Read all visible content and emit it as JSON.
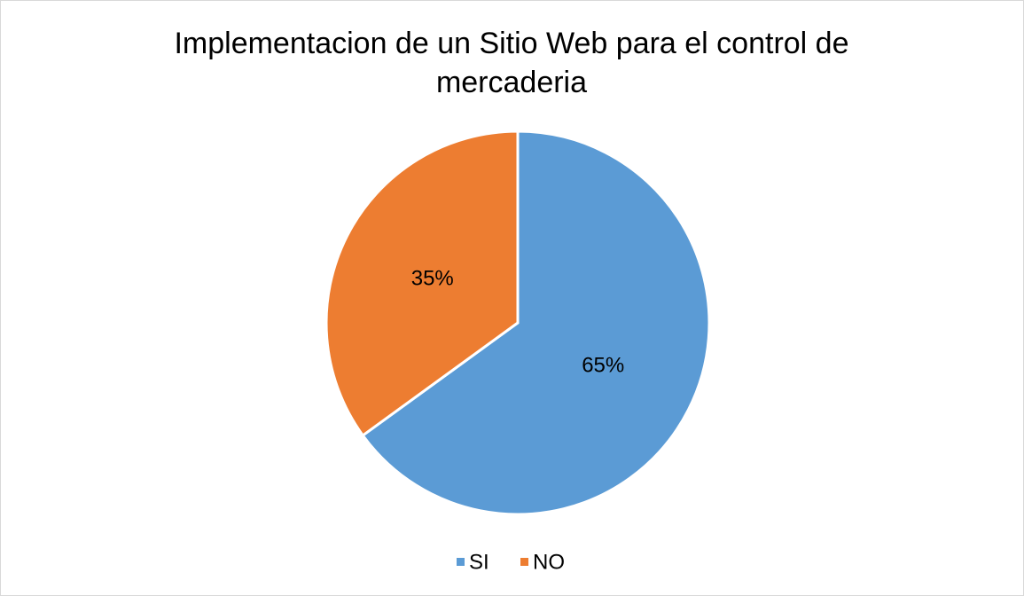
{
  "chart_data": {
    "type": "pie",
    "title": "Implementacion de un Sitio Web para el control de mercaderia",
    "categories": [
      "SI",
      "NO"
    ],
    "values": [
      65,
      35
    ],
    "value_labels": [
      "65%",
      "35%"
    ],
    "colors": [
      "#5b9bd5",
      "#ed7d31"
    ],
    "legend": "bottom"
  }
}
